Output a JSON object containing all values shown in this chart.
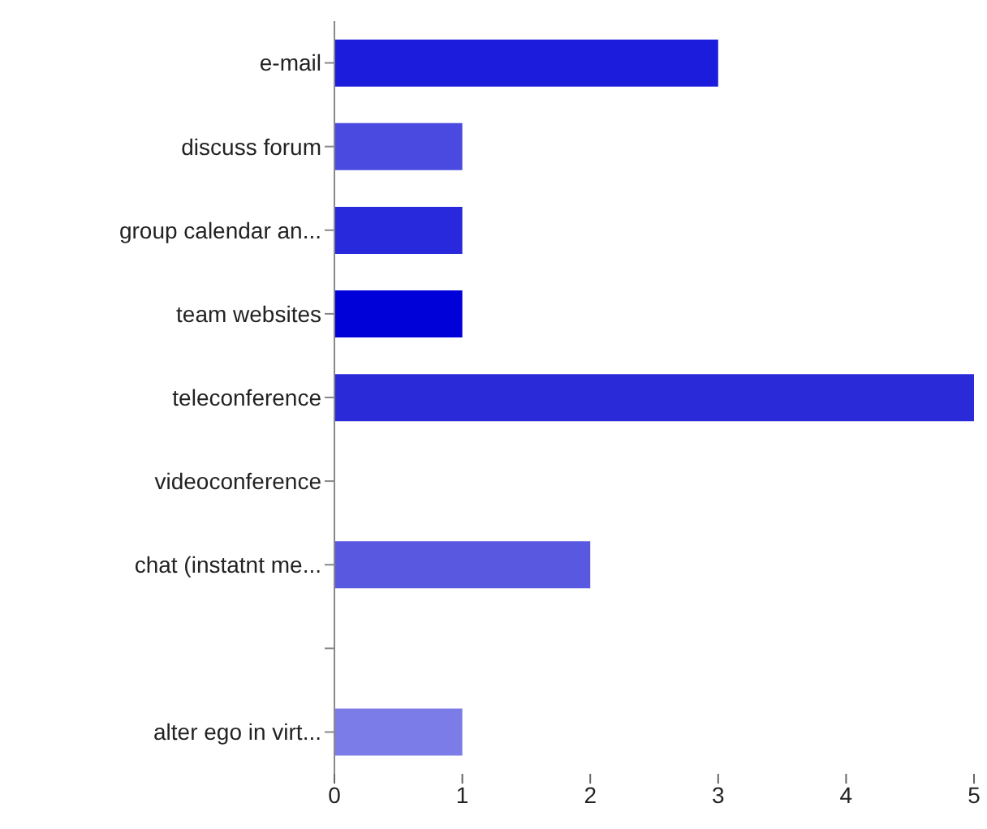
{
  "chart_data": {
    "type": "bar",
    "orientation": "horizontal",
    "categories": [
      "e-mail",
      "discuss forum",
      "group calendar an...",
      "team websites",
      "teleconference",
      "videoconference",
      "chat (instatnt me...",
      null,
      "alter ego in virt..."
    ],
    "values": [
      3,
      1,
      1,
      1,
      5,
      0,
      2,
      0,
      1
    ],
    "colors": [
      "#1c1cdc",
      "#4a4ae0",
      "#2828dc",
      "#0000d8",
      "#2a2ad8",
      "#3030dc",
      "#5858e0",
      "#3030dc",
      "#7c7ce8"
    ],
    "xlim": [
      0,
      5
    ],
    "xticks": [
      0,
      1,
      2,
      3,
      4,
      5
    ],
    "grid": false,
    "legend": false
  }
}
